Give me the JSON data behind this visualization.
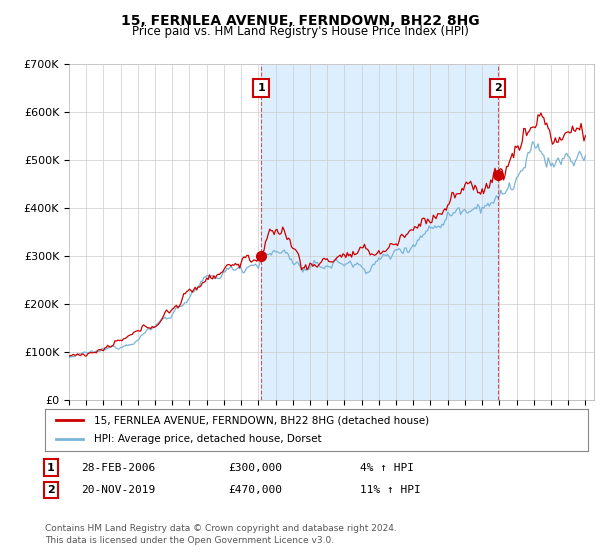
{
  "title": "15, FERNLEA AVENUE, FERNDOWN, BH22 8HG",
  "subtitle": "Price paid vs. HM Land Registry's House Price Index (HPI)",
  "ylim": [
    0,
    700000
  ],
  "xlim_start": 1995.0,
  "xlim_end": 2025.5,
  "yticks": [
    0,
    100000,
    200000,
    300000,
    400000,
    500000,
    600000,
    700000
  ],
  "ytick_labels": [
    "£0",
    "£100K",
    "£200K",
    "£300K",
    "£400K",
    "£500K",
    "£600K",
    "£700K"
  ],
  "hpi_color": "#7ab4d8",
  "price_color": "#cc0000",
  "shade_color": "#ddeeff",
  "transaction1_date": 2006.16,
  "transaction1_price": 300000,
  "transaction2_date": 2019.9,
  "transaction2_price": 470000,
  "legend_label1": "15, FERNLEA AVENUE, FERNDOWN, BH22 8HG (detached house)",
  "legend_label2": "HPI: Average price, detached house, Dorset",
  "table_row1": [
    "1",
    "28-FEB-2006",
    "£300,000",
    "4% ↑ HPI"
  ],
  "table_row2": [
    "2",
    "20-NOV-2019",
    "£470,000",
    "11% ↑ HPI"
  ],
  "footnote": "Contains HM Land Registry data © Crown copyright and database right 2024.\nThis data is licensed under the Open Government Licence v3.0.",
  "background_color": "#ffffff",
  "grid_color": "#cccccc"
}
